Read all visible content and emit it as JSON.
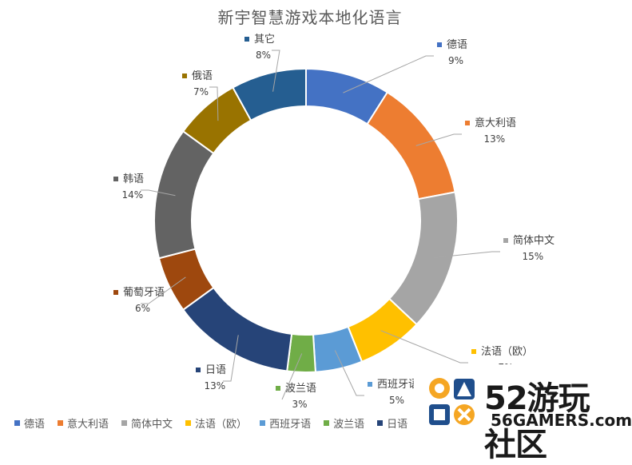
{
  "chart_data": {
    "type": "pie",
    "variant": "doughnut",
    "title": "新宇智慧游戏本地化语言",
    "slices": [
      {
        "name": "德语",
        "value": 9,
        "label": "9%",
        "color": "#4472C4"
      },
      {
        "name": "意大利语",
        "value": 13,
        "label": "13%",
        "color": "#ED7D31"
      },
      {
        "name": "简体中文",
        "value": 15,
        "label": "15%",
        "color": "#A5A5A5"
      },
      {
        "name": "法语（欧）",
        "value": 7,
        "label": "7%",
        "color": "#FFC000"
      },
      {
        "name": "西班牙语",
        "value": 5,
        "label": "5%",
        "color": "#5B9BD5"
      },
      {
        "name": "波兰语",
        "value": 3,
        "label": "3%",
        "color": "#70AD47"
      },
      {
        "name": "日语",
        "value": 13,
        "label": "13%",
        "color": "#264478"
      },
      {
        "name": "葡萄牙语",
        "value": 6,
        "label": "6%",
        "color": "#9E480E"
      },
      {
        "name": "韩语",
        "value": 14,
        "label": "14%",
        "color": "#636363"
      },
      {
        "name": "俄语",
        "value": 7,
        "label": "7%",
        "color": "#997300"
      },
      {
        "name": "其它",
        "value": 8,
        "label": "8%",
        "color": "#255E91"
      }
    ],
    "legend_position": "bottom"
  },
  "watermark": {
    "line1": "52游玩社区",
    "line2": "56GAMERS.com"
  }
}
